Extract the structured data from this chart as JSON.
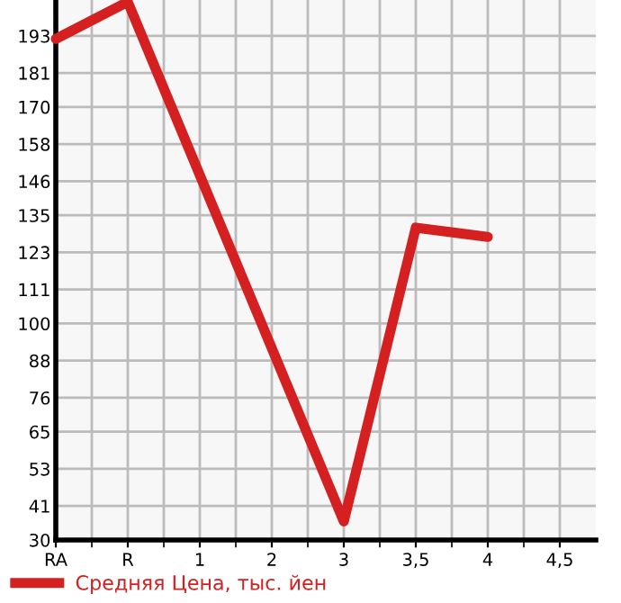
{
  "chart_data": {
    "type": "line",
    "categories": [
      "RA",
      "R",
      "1",
      "2",
      "3",
      "3,5",
      "4",
      "4,5"
    ],
    "series": [
      {
        "name": "Средняя Цена, тыс. йен",
        "color": "#d42020",
        "values": [
          192,
          204,
          null,
          null,
          36,
          131,
          128,
          null
        ]
      }
    ],
    "ylim": [
      30,
      204.6
    ],
    "yticks": [
      30,
      41,
      53,
      65,
      76,
      88,
      100,
      111,
      123,
      135,
      146,
      158,
      170,
      181,
      193
    ],
    "grid": true,
    "legend": "bottom",
    "marker": "none",
    "line_style": "solid"
  }
}
